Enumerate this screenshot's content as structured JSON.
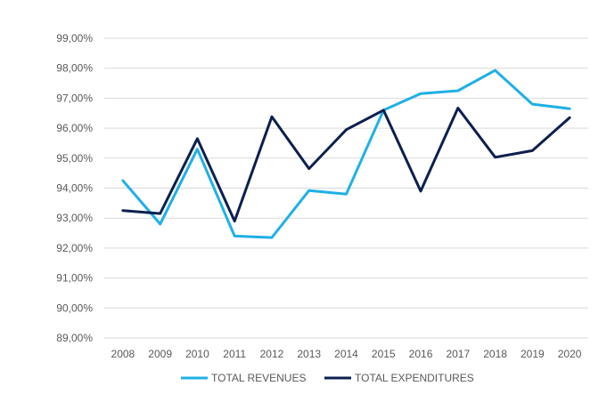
{
  "chart_data": {
    "type": "line",
    "title": "",
    "xlabel": "",
    "ylabel": "",
    "categories": [
      "2008",
      "2009",
      "2010",
      "2011",
      "2012",
      "2013",
      "2014",
      "2015",
      "2016",
      "2017",
      "2018",
      "2019",
      "2020"
    ],
    "ylim": [
      89.0,
      99.0
    ],
    "yticks": [
      {
        "value": 89,
        "label": "89,00%"
      },
      {
        "value": 90,
        "label": "90,00%"
      },
      {
        "value": 91,
        "label": "91,00%"
      },
      {
        "value": 92,
        "label": "92,00%"
      },
      {
        "value": 93,
        "label": "93,00%"
      },
      {
        "value": 94,
        "label": "94,00%"
      },
      {
        "value": 95,
        "label": "95,00%"
      },
      {
        "value": 96,
        "label": "96,00%"
      },
      {
        "value": 97,
        "label": "97,00%"
      },
      {
        "value": 98,
        "label": "98,00%"
      },
      {
        "value": 99,
        "label": "99,00%"
      }
    ],
    "grid": true,
    "legend_position": "bottom",
    "series": [
      {
        "name": "TOTAL REVENUES",
        "color": "#1fb0e6",
        "values": [
          94.25,
          92.8,
          95.3,
          92.4,
          92.35,
          93.92,
          93.8,
          96.6,
          97.15,
          97.25,
          97.93,
          96.8,
          96.65
        ]
      },
      {
        "name": "TOTAL EXPENDITURES",
        "color": "#0d1f4f",
        "values": [
          93.25,
          93.15,
          95.65,
          92.9,
          96.38,
          94.65,
          95.95,
          96.6,
          93.9,
          96.67,
          95.03,
          95.25,
          96.35
        ]
      }
    ]
  },
  "colors": {
    "grid": "#d9d9d9",
    "tick_text": "#595959"
  }
}
